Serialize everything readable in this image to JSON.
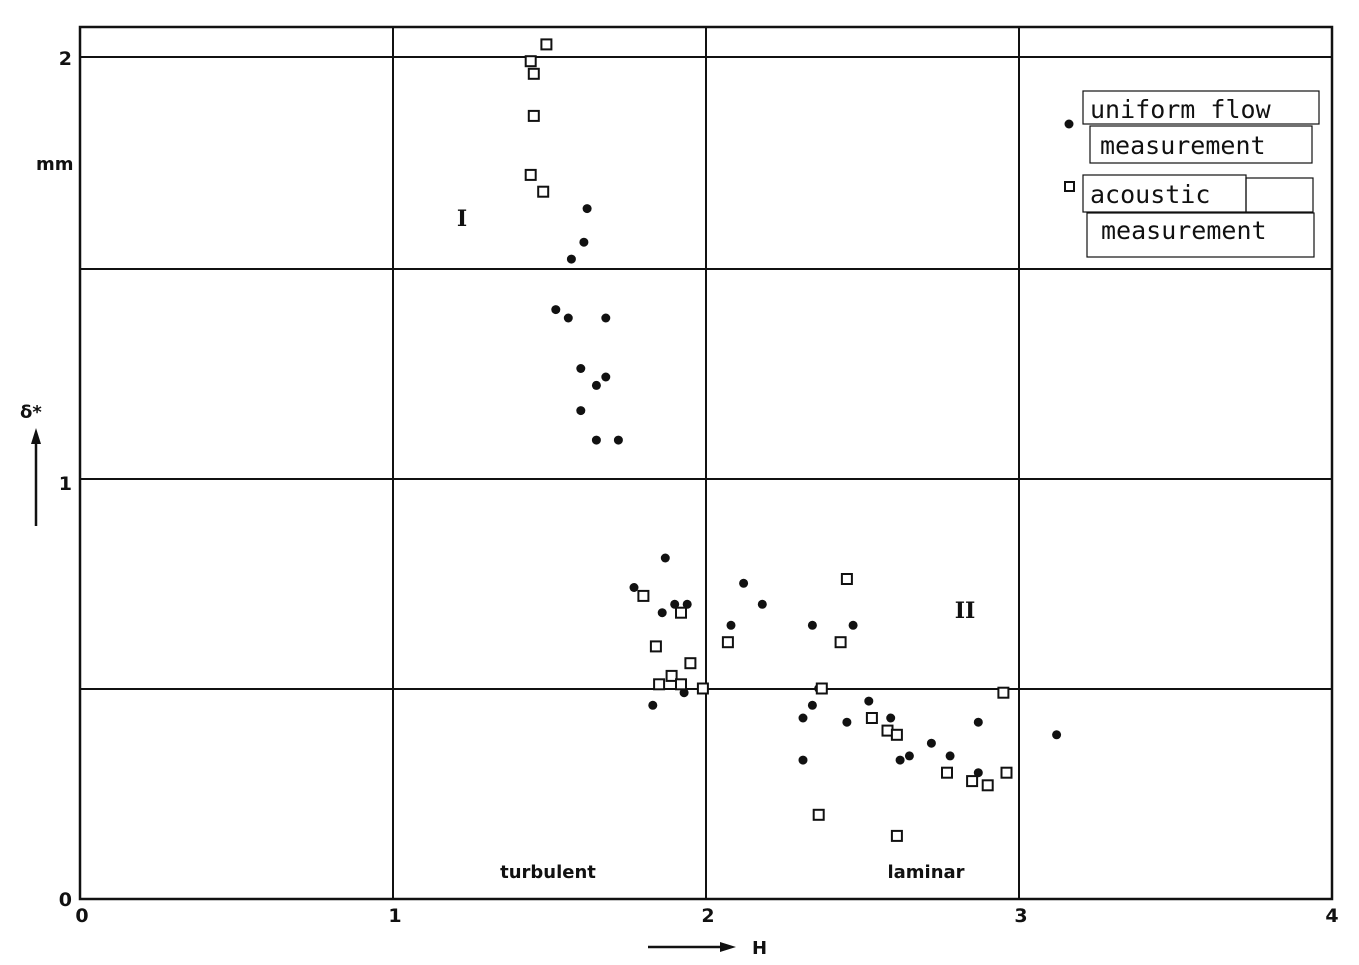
{
  "chart_data": {
    "type": "scatter",
    "xlabel": "H",
    "ylabel": "δ*",
    "y_unit": "mm",
    "xlim": [
      0,
      4
    ],
    "ylim": [
      0,
      2
    ],
    "x_ticks": [
      "0",
      "1",
      "2",
      "3",
      "4"
    ],
    "y_ticks": [
      "0",
      "1",
      "2"
    ],
    "grid": true,
    "legend_position": "top-right",
    "annotations": {
      "region_1": "I",
      "region_2": "II",
      "zone_left": "turbulent",
      "zone_right": "laminar"
    },
    "series": [
      {
        "name": "uniform flow measurement",
        "legend_lines": [
          "uniform flow",
          "measurement"
        ],
        "marker": "filled-circle",
        "points": [
          [
            1.62,
            1.64
          ],
          [
            1.61,
            1.56
          ],
          [
            1.57,
            1.52
          ],
          [
            1.52,
            1.4
          ],
          [
            1.56,
            1.38
          ],
          [
            1.68,
            1.38
          ],
          [
            1.6,
            1.26
          ],
          [
            1.68,
            1.24
          ],
          [
            1.65,
            1.22
          ],
          [
            1.6,
            1.16
          ],
          [
            1.65,
            1.09
          ],
          [
            1.72,
            1.09
          ],
          [
            1.87,
            0.81
          ],
          [
            1.77,
            0.74
          ],
          [
            1.86,
            0.68
          ],
          [
            1.9,
            0.7
          ],
          [
            1.94,
            0.7
          ],
          [
            2.12,
            0.75
          ],
          [
            2.18,
            0.7
          ],
          [
            2.08,
            0.65
          ],
          [
            2.34,
            0.65
          ],
          [
            2.47,
            0.65
          ],
          [
            1.83,
            0.46
          ],
          [
            1.93,
            0.49
          ],
          [
            2.31,
            0.43
          ],
          [
            2.34,
            0.46
          ],
          [
            2.36,
            0.5
          ],
          [
            2.45,
            0.42
          ],
          [
            2.52,
            0.47
          ],
          [
            2.59,
            0.43
          ],
          [
            2.62,
            0.33
          ],
          [
            2.65,
            0.34
          ],
          [
            2.31,
            0.33
          ],
          [
            2.72,
            0.37
          ],
          [
            2.78,
            0.34
          ],
          [
            2.87,
            0.42
          ],
          [
            2.87,
            0.3
          ],
          [
            3.12,
            0.39
          ]
        ]
      },
      {
        "name": "acoustic measurement",
        "legend_lines": [
          "acoustic",
          "measurement"
        ],
        "marker": "open-square",
        "points": [
          [
            1.49,
            2.03
          ],
          [
            1.44,
            1.99
          ],
          [
            1.45,
            1.96
          ],
          [
            1.45,
            1.86
          ],
          [
            1.44,
            1.72
          ],
          [
            1.48,
            1.68
          ],
          [
            1.8,
            0.72
          ],
          [
            1.84,
            0.6
          ],
          [
            1.95,
            0.56
          ],
          [
            1.89,
            0.53
          ],
          [
            1.92,
            0.51
          ],
          [
            1.85,
            0.51
          ],
          [
            1.99,
            0.5
          ],
          [
            1.92,
            0.68
          ],
          [
            2.07,
            0.61
          ],
          [
            2.45,
            0.76
          ],
          [
            2.43,
            0.61
          ],
          [
            2.37,
            0.5
          ],
          [
            2.53,
            0.43
          ],
          [
            2.58,
            0.4
          ],
          [
            2.61,
            0.39
          ],
          [
            2.95,
            0.49
          ],
          [
            2.77,
            0.3
          ],
          [
            2.85,
            0.28
          ],
          [
            2.9,
            0.27
          ],
          [
            2.96,
            0.3
          ],
          [
            2.36,
            0.2
          ],
          [
            2.61,
            0.15
          ]
        ]
      }
    ]
  }
}
